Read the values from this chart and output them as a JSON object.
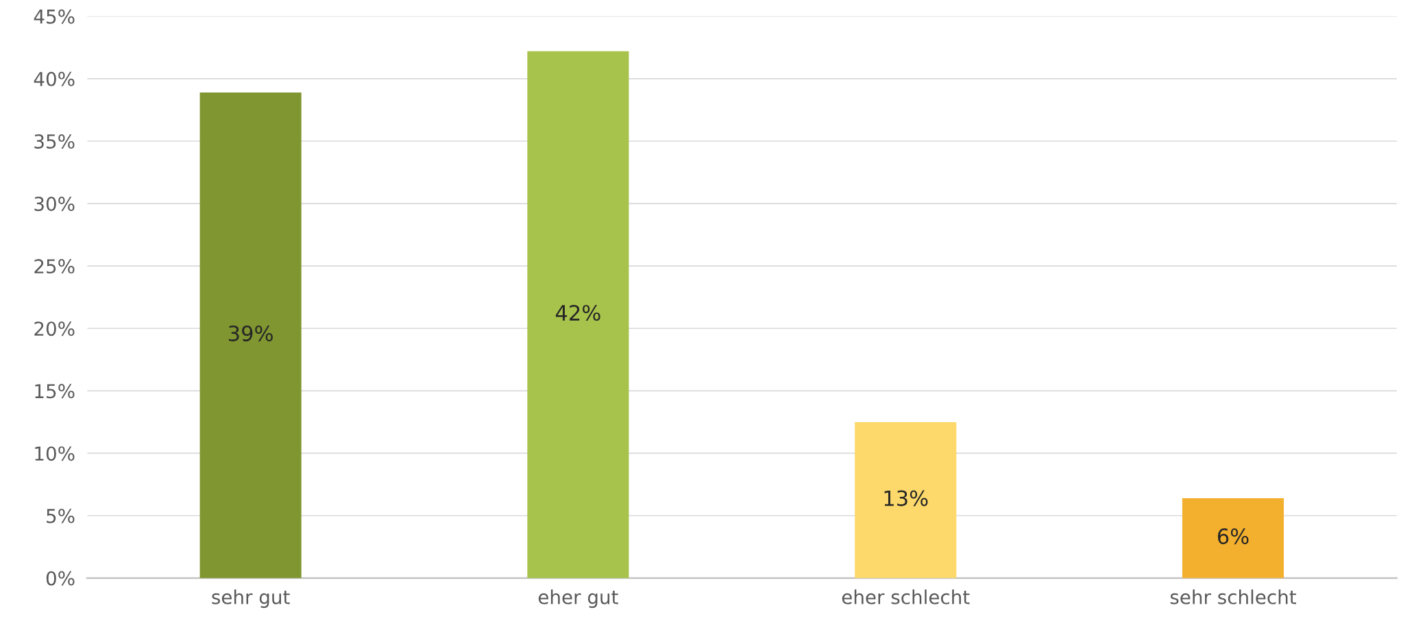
{
  "chart_data": {
    "type": "bar",
    "categories": [
      "sehr gut",
      "eher gut",
      "eher schlecht",
      "sehr schlecht"
    ],
    "values": [
      38.9,
      42.2,
      12.5,
      6.4
    ],
    "colors": [
      "#7f9631",
      "#a8c34c",
      "#fdd96b",
      "#f3b02e"
    ],
    "value_labels": [
      "39%",
      "42%",
      "13%",
      "6%"
    ],
    "ylim": [
      0,
      45
    ],
    "yticks": [
      {
        "value": 0,
        "label": "0%"
      },
      {
        "value": 5,
        "label": "5%"
      },
      {
        "value": 10,
        "label": "10%"
      },
      {
        "value": 15,
        "label": "15%"
      },
      {
        "value": 20,
        "label": "20%"
      },
      {
        "value": 25,
        "label": "25%"
      },
      {
        "value": 30,
        "label": "30%"
      },
      {
        "value": 35,
        "label": "35%"
      },
      {
        "value": 40,
        "label": "40%"
      },
      {
        "value": 45,
        "label": "45%"
      }
    ],
    "grid": "y"
  }
}
